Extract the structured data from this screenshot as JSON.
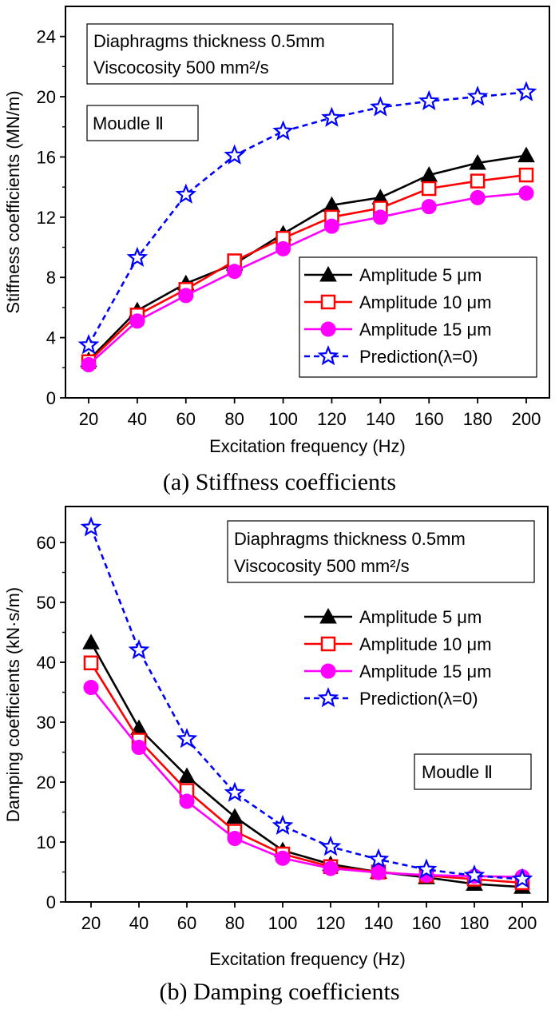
{
  "chart_data": [
    {
      "type": "line",
      "caption": "(a) Stiffness coefficients",
      "xlabel": "Excitation frequency (Hz)",
      "ylabel": "Stiffness coefficients (MN/m)",
      "x": [
        20,
        40,
        60,
        80,
        100,
        120,
        140,
        160,
        180,
        200
      ],
      "xticks": [
        "20",
        "40",
        "60",
        "80",
        "100",
        "120",
        "140",
        "160",
        "180",
        "200"
      ],
      "yticks": [
        "0",
        "4",
        "8",
        "12",
        "16",
        "20",
        "24"
      ],
      "ylim": [
        0,
        26
      ],
      "info": [
        "Diaphragms thickness 0.5mm",
        "Viscocosity 500 mm²/s"
      ],
      "module": "Moudle Ⅱ",
      "legend": "right",
      "series": [
        {
          "name": "Amplitude 5 μm",
          "color": "#000000",
          "marker": "triangle",
          "dash": "solid",
          "values": [
            2.5,
            5.8,
            7.6,
            8.9,
            10.9,
            12.8,
            13.3,
            14.8,
            15.6,
            16.1
          ]
        },
        {
          "name": "Amplitude 10 μm",
          "color": "#ff0000",
          "marker": "square",
          "dash": "solid",
          "values": [
            2.4,
            5.5,
            7.2,
            9.1,
            10.6,
            12.0,
            12.6,
            13.9,
            14.4,
            14.8
          ]
        },
        {
          "name": "Amplitude 15 μm",
          "color": "#ff00ff",
          "marker": "circle",
          "dash": "solid",
          "values": [
            2.2,
            5.1,
            6.8,
            8.4,
            9.9,
            11.4,
            12.0,
            12.7,
            13.3,
            13.6
          ]
        },
        {
          "name": "Prediction(λ=0)",
          "color": "#0000ff",
          "marker": "star",
          "dash": "dashed",
          "values": [
            3.5,
            9.3,
            13.5,
            16.1,
            17.7,
            18.6,
            19.3,
            19.7,
            20.0,
            20.3
          ]
        }
      ]
    },
    {
      "type": "line",
      "caption": "(b) Damping coefficients",
      "xlabel": "Excitation frequency (Hz)",
      "ylabel": "Damping coefficients  (kN·s/m)",
      "x": [
        20,
        40,
        60,
        80,
        100,
        120,
        140,
        160,
        180,
        200
      ],
      "xticks": [
        "20",
        "40",
        "60",
        "80",
        "100",
        "120",
        "140",
        "160",
        "180",
        "200"
      ],
      "yticks": [
        "0",
        "10",
        "20",
        "30",
        "40",
        "50",
        "60"
      ],
      "ylim": [
        0,
        66
      ],
      "info": [
        "Diaphragms thickness 0.5mm",
        "Viscocosity 500 mm²/s"
      ],
      "module": "Moudle Ⅱ",
      "legend": "right",
      "series": [
        {
          "name": "Amplitude 5 μm",
          "color": "#000000",
          "marker": "triangle",
          "dash": "solid",
          "values": [
            43.3,
            29.0,
            21.0,
            14.2,
            8.6,
            6.3,
            5.0,
            4.1,
            3.0,
            2.5
          ]
        },
        {
          "name": "Amplitude 10 μm",
          "color": "#ff0000",
          "marker": "square",
          "dash": "solid",
          "values": [
            39.9,
            27.0,
            18.6,
            11.8,
            8.0,
            5.9,
            5.0,
            4.4,
            3.8,
            3.2
          ]
        },
        {
          "name": "Amplitude 15 μm",
          "color": "#ff00ff",
          "marker": "circle",
          "dash": "solid",
          "values": [
            35.8,
            25.8,
            16.8,
            10.6,
            7.3,
            5.6,
            4.9,
            4.5,
            4.3,
            4.2
          ]
        },
        {
          "name": "Prediction(λ=0)",
          "color": "#0000ff",
          "marker": "star",
          "dash": "dashed",
          "values": [
            62.5,
            42.0,
            27.2,
            18.2,
            12.7,
            9.2,
            7.1,
            5.4,
            4.4,
            3.8
          ]
        }
      ]
    }
  ]
}
